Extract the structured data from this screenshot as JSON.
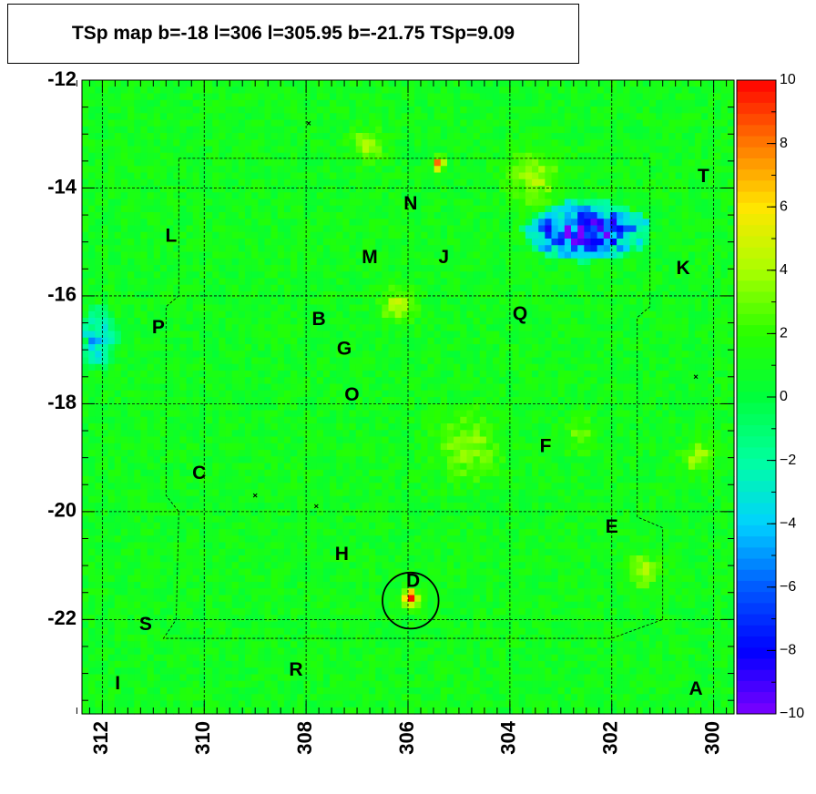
{
  "title": "TSp map b=-18 l=306 l=305.95 b=-21.75 TSp=9.09",
  "chart_data": {
    "type": "heatmap",
    "title": "TSp map b=-18 l=306 l=305.95 b=-21.75 TSp=9.09",
    "xlabel": "",
    "ylabel": "",
    "xlim": [
      312.4,
      299.6
    ],
    "ylim": [
      -23.75,
      -12.0
    ],
    "x_ticks": [
      312,
      310,
      308,
      306,
      304,
      302,
      300
    ],
    "x_tick_labels": [
      "312",
      "310",
      "308",
      "306",
      "304",
      "302",
      "300"
    ],
    "y_ticks": [
      -12,
      -14,
      -16,
      -18,
      -20,
      -22
    ],
    "y_tick_labels": [
      "-12",
      "-14",
      "-16",
      "-18",
      "-20",
      "-22"
    ],
    "z_range": [
      -10,
      10
    ],
    "colorbar_ticks": [
      10,
      8,
      6,
      4,
      2,
      0,
      -2,
      -4,
      -6,
      -8,
      -10
    ],
    "colorbar_tick_labels": [
      "10",
      "8",
      "6",
      "4",
      "2",
      "0",
      "−2",
      "−4",
      "−6",
      "−8",
      "−10"
    ],
    "background_level": 1.0,
    "hotspots": [
      {
        "l": 305.95,
        "b": -21.6,
        "ts": 9.5,
        "radius": 0.15
      },
      {
        "l": 305.4,
        "b": -13.55,
        "ts": 8.5,
        "radius": 0.12
      },
      {
        "l": 306.2,
        "b": -16.2,
        "ts": 4.5,
        "radius": 0.3
      },
      {
        "l": 303.5,
        "b": -13.8,
        "ts": 4.0,
        "radius": 0.5
      },
      {
        "l": 306.8,
        "b": -13.2,
        "ts": 4.0,
        "radius": 0.3
      },
      {
        "l": 304.8,
        "b": -18.8,
        "ts": 3.5,
        "radius": 0.6
      },
      {
        "l": 301.4,
        "b": -21.1,
        "ts": 4.0,
        "radius": 0.3
      },
      {
        "l": 300.3,
        "b": -19.0,
        "ts": 4.0,
        "radius": 0.3
      },
      {
        "l": 302.6,
        "b": -18.6,
        "ts": 3.0,
        "radius": 0.3
      }
    ],
    "coldspots": [
      {
        "l": 302.5,
        "b": -14.8,
        "ts": -9.0,
        "rl": 1.0,
        "rb": 0.45
      },
      {
        "l": 312.1,
        "b": -16.8,
        "ts": -3.5,
        "rl": 0.35,
        "rb": 0.5
      }
    ],
    "circle": {
      "l": 305.95,
      "b": -21.65,
      "radius_deg": 0.55
    },
    "markers": [
      {
        "l": 307.95,
        "b": -12.8
      },
      {
        "l": 300.35,
        "b": -17.5
      },
      {
        "l": 309.0,
        "b": -19.7
      },
      {
        "l": 307.8,
        "b": -19.9
      }
    ],
    "sources": [
      {
        "label": "A",
        "l": 300.35,
        "b": -23.3
      },
      {
        "label": "B",
        "l": 307.75,
        "b": -16.45
      },
      {
        "label": "C",
        "l": 310.1,
        "b": -19.3
      },
      {
        "label": "D",
        "l": 305.9,
        "b": -21.3
      },
      {
        "label": "E",
        "l": 302.0,
        "b": -20.3
      },
      {
        "label": "F",
        "l": 303.3,
        "b": -18.8
      },
      {
        "label": "G",
        "l": 307.25,
        "b": -17.0
      },
      {
        "label": "H",
        "l": 307.3,
        "b": -20.8
      },
      {
        "label": "I",
        "l": 311.7,
        "b": -23.2
      },
      {
        "label": "J",
        "l": 305.3,
        "b": -15.3
      },
      {
        "label": "K",
        "l": 300.6,
        "b": -15.5
      },
      {
        "label": "L",
        "l": 310.65,
        "b": -14.9
      },
      {
        "label": "M",
        "l": 306.75,
        "b": -15.3
      },
      {
        "label": "N",
        "l": 305.95,
        "b": -14.3
      },
      {
        "label": "O",
        "l": 307.1,
        "b": -17.85
      },
      {
        "label": "P",
        "l": 310.9,
        "b": -16.6
      },
      {
        "label": "Q",
        "l": 303.8,
        "b": -16.35
      },
      {
        "label": "R",
        "l": 308.2,
        "b": -22.95
      },
      {
        "label": "S",
        "l": 311.15,
        "b": -22.1
      },
      {
        "label": "T",
        "l": 300.2,
        "b": -13.8
      }
    ]
  }
}
